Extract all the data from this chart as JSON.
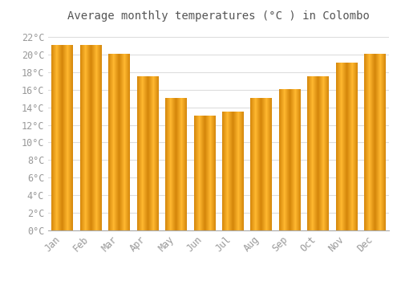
{
  "title": "Average monthly temperatures (°C ) in Colombo",
  "months": [
    "Jan",
    "Feb",
    "Mar",
    "Apr",
    "May",
    "Jun",
    "Jul",
    "Aug",
    "Sep",
    "Oct",
    "Nov",
    "Dec"
  ],
  "values": [
    21,
    21,
    20,
    17.5,
    15,
    13,
    13.5,
    15,
    16,
    17.5,
    19,
    20
  ],
  "bar_color_left": "#E8920A",
  "bar_color_mid": "#FFBB33",
  "bar_color_right": "#E8920A",
  "ylim": [
    0,
    23
  ],
  "ytick_step": 2,
  "background_color": "#ffffff",
  "plot_bg_color": "#ffffff",
  "grid_color": "#dddddd",
  "title_fontsize": 10,
  "tick_fontsize": 8.5,
  "tick_label_color": "#999999",
  "bar_width": 0.75,
  "figsize": [
    5.0,
    3.5
  ],
  "dpi": 100
}
